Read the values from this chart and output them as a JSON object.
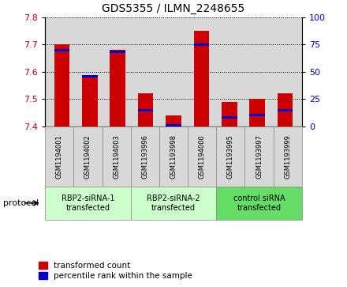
{
  "title": "GDS5355 / ILMN_2248655",
  "samples": [
    "GSM1194001",
    "GSM1194002",
    "GSM1194003",
    "GSM1193996",
    "GSM1193998",
    "GSM1194000",
    "GSM1193995",
    "GSM1193997",
    "GSM1193999"
  ],
  "transformed_counts": [
    7.7,
    7.58,
    7.68,
    7.52,
    7.44,
    7.75,
    7.49,
    7.5,
    7.52
  ],
  "percentile_ranks": [
    70,
    46,
    68,
    15,
    1,
    75,
    8,
    10,
    15
  ],
  "ylim_left": [
    7.4,
    7.8
  ],
  "ylim_right": [
    0,
    100
  ],
  "yticks_left": [
    7.4,
    7.5,
    7.6,
    7.7,
    7.8
  ],
  "yticks_right": [
    0,
    25,
    50,
    75,
    100
  ],
  "groups": [
    {
      "label": "RBP2-siRNA-1\ntransfected",
      "start": 0,
      "end": 3,
      "color": "#ccffcc"
    },
    {
      "label": "RBP2-siRNA-2\ntransfected",
      "start": 3,
      "end": 6,
      "color": "#ccffcc"
    },
    {
      "label": "control siRNA\ntransfected",
      "start": 6,
      "end": 9,
      "color": "#66dd66"
    }
  ],
  "bar_color_red": "#cc0000",
  "bar_color_blue": "#0000cc",
  "bar_width": 0.55,
  "background_color": "#ffffff",
  "plot_bg_color": "#d8d8d8",
  "sample_box_color": "#d8d8d8",
  "legend_red": "transformed count",
  "legend_blue": "percentile rank within the sample",
  "protocol_label": "protocol"
}
